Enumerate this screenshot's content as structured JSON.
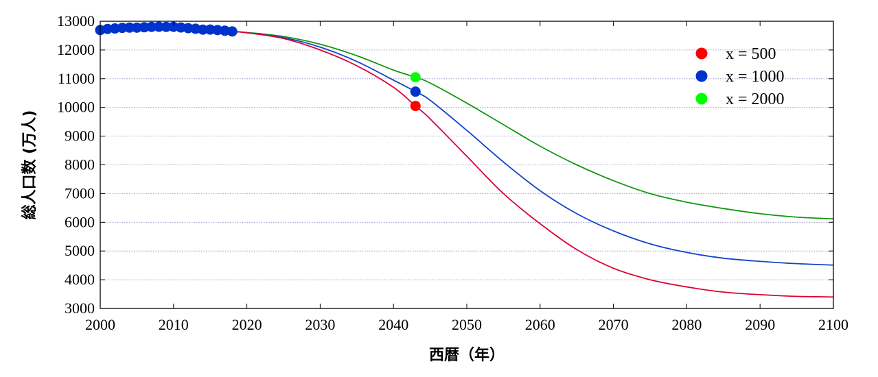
{
  "chart_data": {
    "type": "line",
    "title": "",
    "xlabel": "西暦（年）",
    "ylabel": "総人口数 (万人)",
    "xlim": [
      2000,
      2100
    ],
    "ylim": [
      3000,
      13000
    ],
    "x_ticks": [
      2000,
      2010,
      2020,
      2030,
      2040,
      2050,
      2060,
      2070,
      2080,
      2090,
      2100
    ],
    "y_ticks": [
      3000,
      4000,
      5000,
      6000,
      7000,
      8000,
      9000,
      10000,
      11000,
      12000,
      13000
    ],
    "grid": "horizontal dotted",
    "legend_position": "top-right",
    "observed": {
      "color": "#0033cc",
      "x": [
        2000,
        2001,
        2002,
        2003,
        2004,
        2005,
        2006,
        2007,
        2008,
        2009,
        2010,
        2011,
        2012,
        2013,
        2014,
        2015,
        2016,
        2017,
        2018
      ],
      "y": [
        12693,
        12732,
        12749,
        12769,
        12779,
        12777,
        12790,
        12803,
        12808,
        12803,
        12806,
        12783,
        12759,
        12739,
        12708,
        12710,
        12693,
        12671,
        12644
      ]
    },
    "series": [
      {
        "name": "x = 500",
        "color": "#dd0033",
        "marker_color": "#ff0000",
        "marker": {
          "x": 2043,
          "y": 10050
        },
        "x": [
          2018,
          2020,
          2025,
          2030,
          2035,
          2040,
          2043,
          2045,
          2050,
          2055,
          2060,
          2065,
          2070,
          2075,
          2080,
          2085,
          2090,
          2095,
          2100
        ],
        "y": [
          12644,
          12600,
          12400,
          12000,
          11450,
          10700,
          10050,
          9600,
          8300,
          7000,
          5950,
          5050,
          4400,
          4000,
          3750,
          3570,
          3480,
          3420,
          3400
        ]
      },
      {
        "name": "x = 1000",
        "color": "#1144cc",
        "marker_color": "#0033cc",
        "marker": {
          "x": 2043,
          "y": 10550
        },
        "x": [
          2018,
          2020,
          2025,
          2030,
          2035,
          2040,
          2043,
          2045,
          2050,
          2055,
          2060,
          2065,
          2070,
          2075,
          2080,
          2085,
          2090,
          2095,
          2100
        ],
        "y": [
          12644,
          12600,
          12430,
          12100,
          11600,
          10950,
          10550,
          10250,
          9200,
          8100,
          7100,
          6300,
          5700,
          5250,
          4950,
          4750,
          4640,
          4560,
          4510
        ]
      },
      {
        "name": "x = 2000",
        "color": "#119911",
        "marker_color": "#00ff00",
        "marker": {
          "x": 2043,
          "y": 11050
        },
        "x": [
          2018,
          2020,
          2025,
          2030,
          2035,
          2040,
          2043,
          2045,
          2050,
          2055,
          2060,
          2065,
          2070,
          2075,
          2080,
          2085,
          2090,
          2095,
          2100
        ],
        "y": [
          12644,
          12610,
          12470,
          12200,
          11800,
          11300,
          11050,
          10850,
          10150,
          9400,
          8650,
          8000,
          7450,
          7000,
          6700,
          6480,
          6300,
          6180,
          6120
        ]
      }
    ]
  }
}
